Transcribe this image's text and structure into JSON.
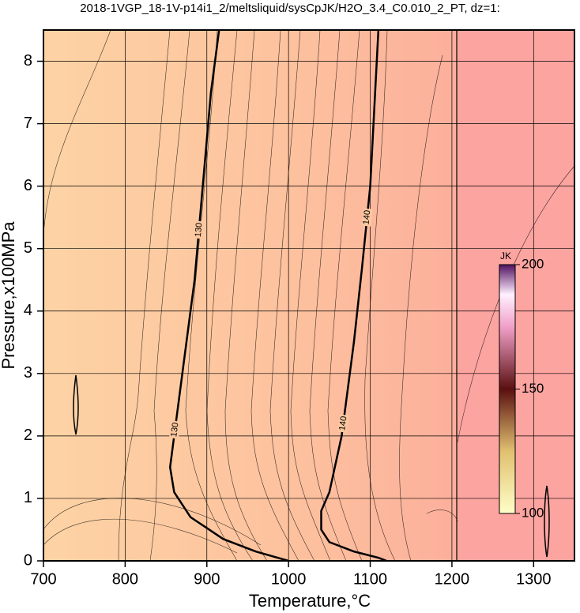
{
  "chart_data": {
    "type": "contour",
    "title": "2018-1VGP_18-1V-p14i1_2/meltsliquid/sysCpJK/H2O_3.4_C0.010_2_PT, dz=1:",
    "x_label": "Temperature,°C",
    "y_label": "Pressure,x100MPa",
    "xlim": [
      700,
      1350
    ],
    "ylim": [
      0,
      8.5
    ],
    "xticks": [
      700,
      800,
      900,
      1000,
      1100,
      1200,
      1300
    ],
    "yticks": [
      0,
      1,
      2,
      3,
      4,
      5,
      6,
      7,
      8
    ],
    "grid": true,
    "contours": [
      {
        "level": 130,
        "T": [
          1000,
          960,
          920,
          880,
          860,
          855,
          860,
          870,
          885,
          895,
          905,
          915
        ],
        "P": [
          0,
          0.15,
          0.35,
          0.7,
          1.1,
          1.5,
          2.0,
          3.0,
          4.5,
          6.0,
          7.5,
          8.5
        ],
        "label_at": [
          2.1,
          5.3
        ]
      },
      {
        "level": 140,
        "T": [
          1120,
          1110,
          1080,
          1050,
          1040,
          1040,
          1050,
          1065,
          1080,
          1090,
          1100,
          1110
        ],
        "P": [
          0,
          0.05,
          0.15,
          0.3,
          0.5,
          0.8,
          1.1,
          2.0,
          3.5,
          4.7,
          6.0,
          8.5
        ],
        "label_at": [
          2.2,
          5.5
        ]
      }
    ],
    "colorbar": {
      "title": "JK",
      "lim": [
        100,
        200
      ],
      "ticks": [
        100,
        150,
        200
      ]
    }
  }
}
